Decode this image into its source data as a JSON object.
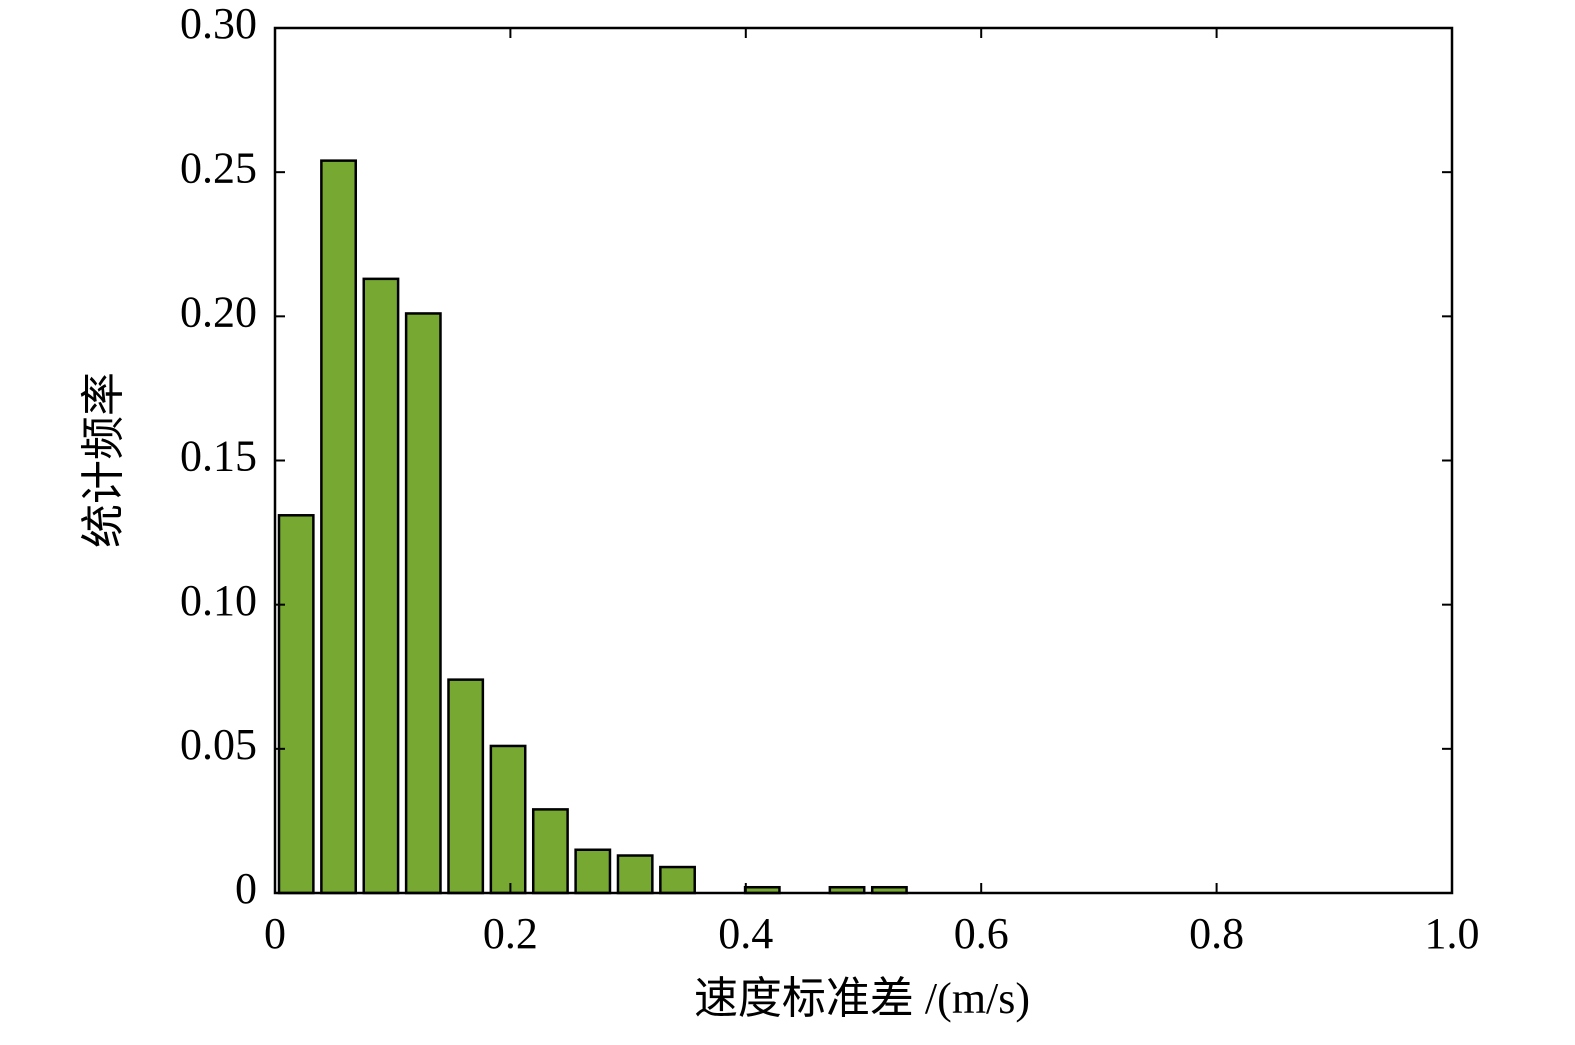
{
  "chart_data": {
    "type": "histogram",
    "xlabel": "速度标准差 /(m/s)",
    "ylabel": "统计频率",
    "bins": [
      0,
      0.036,
      0.072,
      0.108,
      0.144,
      0.18,
      0.216,
      0.252,
      0.288,
      0.324,
      0.36,
      0.396,
      0.432,
      0.468,
      0.504,
      0.54
    ],
    "counts": [
      0.131,
      0.254,
      0.213,
      0.201,
      0.074,
      0.051,
      0.029,
      0.015,
      0.013,
      0.009,
      0,
      0.002,
      0,
      0.002,
      0.002
    ],
    "color": "#76a832",
    "xlim": [
      0,
      1.0
    ],
    "xticks": [
      0,
      0.2,
      0.4,
      0.6,
      0.8,
      {
        "value": 1.0,
        "label": "1.0"
      }
    ],
    "ylim": [
      0,
      0.3
    ],
    "yticks": [
      0,
      0.05,
      {
        "value": 0.1,
        "label": "0.10"
      },
      0.15,
      {
        "value": 0.2,
        "label": "0.20"
      },
      0.25,
      {
        "value": 0.3,
        "label": "0.30"
      }
    ]
  }
}
